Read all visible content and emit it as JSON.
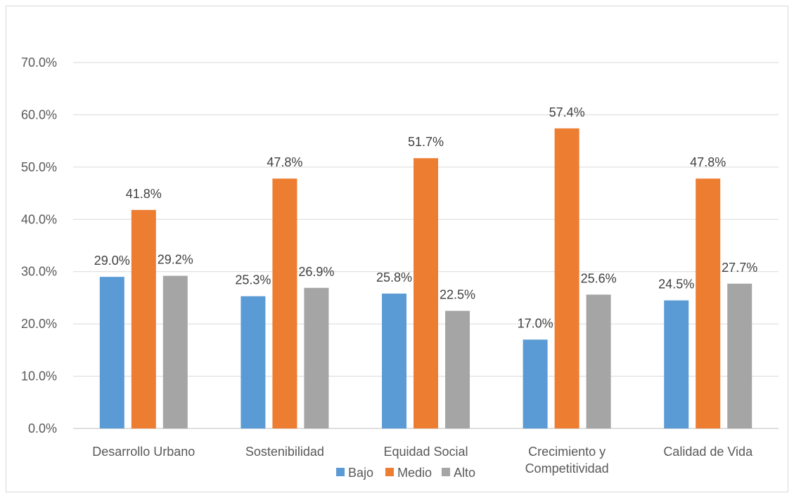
{
  "chart_data": {
    "type": "bar",
    "title": "",
    "xlabel": "",
    "ylabel": "",
    "categories": [
      [
        "Desarrollo Urbano"
      ],
      [
        "Sostenibilidad"
      ],
      [
        "Equidad Social"
      ],
      [
        "Crecimiento y",
        "Competitividad"
      ],
      [
        "Calidad de Vida"
      ]
    ],
    "series": [
      {
        "name": "Bajo",
        "color": "#5b9bd5",
        "values": [
          29.0,
          25.3,
          25.8,
          17.0,
          24.5
        ]
      },
      {
        "name": "Medio",
        "color": "#ed7d31",
        "values": [
          41.8,
          47.8,
          51.7,
          57.4,
          47.8
        ]
      },
      {
        "name": "Alto",
        "color": "#a5a5a5",
        "values": [
          29.2,
          26.9,
          22.5,
          25.6,
          27.7
        ]
      }
    ],
    "ylim": [
      0,
      70
    ],
    "yticks": [
      0,
      10,
      20,
      30,
      40,
      50,
      60,
      70
    ],
    "tick_suffix": "%",
    "value_decimals": 1,
    "grid": true,
    "legend_position": "bottom"
  }
}
